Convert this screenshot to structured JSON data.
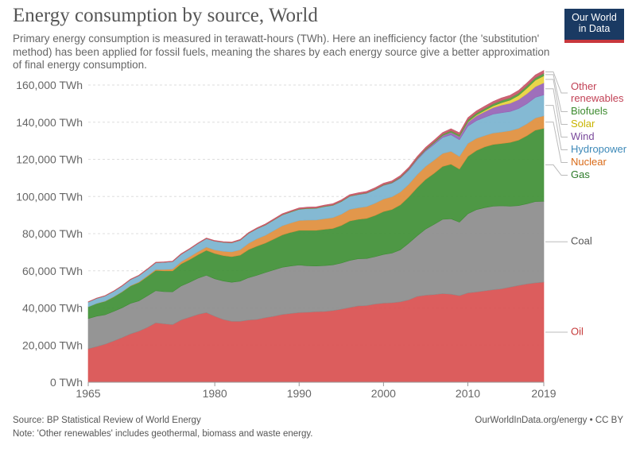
{
  "header": {
    "title": "Energy consumption by source, World",
    "subtitle": "Primary energy consumption is measured in terawatt-hours (TWh). Here an inefficiency factor (the 'substitution' method) has been applied for fossil fuels, meaning the shares by each energy source give a better approximation of final energy consumption."
  },
  "logo": {
    "line1": "Our World",
    "line2": "in Data",
    "bg": "#1a3a63",
    "accent": "#c8373d"
  },
  "footer": {
    "source": "Source: BP Statistical Review of World Energy",
    "note": "Note: 'Other renewables' includes geothermal, biomass and waste energy.",
    "credit": "OurWorldInData.org/energy • CC BY"
  },
  "chart_data": {
    "type": "area",
    "stacked": true,
    "x": [
      1965,
      1966,
      1967,
      1968,
      1969,
      1970,
      1971,
      1972,
      1973,
      1974,
      1975,
      1976,
      1977,
      1978,
      1979,
      1980,
      1981,
      1982,
      1983,
      1984,
      1985,
      1986,
      1987,
      1988,
      1989,
      1990,
      1991,
      1992,
      1993,
      1994,
      1995,
      1996,
      1997,
      1998,
      1999,
      2000,
      2001,
      2002,
      2003,
      2004,
      2005,
      2006,
      2007,
      2008,
      2009,
      2010,
      2011,
      2012,
      2013,
      2014,
      2015,
      2016,
      2017,
      2018,
      2019
    ],
    "x_ticks": [
      1965,
      1980,
      1990,
      2000,
      2010,
      2019
    ],
    "y_ticks": [
      0,
      20000,
      40000,
      60000,
      80000,
      100000,
      120000,
      140000,
      160000
    ],
    "y_tick_labels": [
      "0 TWh",
      "20,000 TWh",
      "40,000 TWh",
      "60,000 TWh",
      "80,000 TWh",
      "100,000 TWh",
      "120,000 TWh",
      "140,000 TWh",
      "160,000 TWh"
    ],
    "ylim": [
      0,
      160000
    ],
    "grid": true,
    "series": [
      {
        "name": "Oil",
        "color": "#d94f4f",
        "label_color": "#c63b3b",
        "values": [
          18000,
          19200,
          20500,
          22200,
          24000,
          26000,
          27500,
          29500,
          32000,
          31500,
          31000,
          33500,
          35000,
          36500,
          37500,
          35500,
          33800,
          32800,
          32800,
          33500,
          33800,
          34800,
          35500,
          36500,
          37000,
          37500,
          37700,
          38000,
          38100,
          38600,
          39300,
          40200,
          41100,
          41300,
          42100,
          42600,
          42800,
          43300,
          44300,
          46200,
          46900,
          47200,
          47700,
          47400,
          46600,
          48100,
          48600,
          49200,
          49800,
          50300,
          51200,
          52100,
          52900,
          53500,
          53900
        ]
      },
      {
        "name": "Coal",
        "color": "#8c8c8c",
        "label_color": "#555555",
        "values": [
          16300,
          16400,
          15800,
          15900,
          16100,
          16500,
          16300,
          17000,
          17300,
          17300,
          17700,
          18300,
          18800,
          19500,
          20100,
          20200,
          20700,
          21000,
          21600,
          22800,
          23800,
          24300,
          25000,
          25400,
          25600,
          25600,
          25000,
          24600,
          24700,
          24600,
          24900,
          25400,
          25400,
          25300,
          25500,
          26200,
          26700,
          28000,
          30600,
          32700,
          35600,
          37800,
          40000,
          40600,
          39600,
          42600,
          44300,
          44800,
          45000,
          44700,
          43600,
          43000,
          43200,
          43800,
          43500
        ]
      },
      {
        "name": "Gas",
        "color": "#3f8f35",
        "label_color": "#2c7a28",
        "values": [
          6300,
          6800,
          7300,
          7800,
          8500,
          9300,
          9900,
          10400,
          10900,
          11200,
          11300,
          11900,
          12200,
          12600,
          13400,
          13600,
          13700,
          13800,
          14000,
          15100,
          15700,
          15800,
          16600,
          17400,
          18100,
          18700,
          19100,
          19200,
          19500,
          19600,
          20200,
          21200,
          21200,
          21600,
          22200,
          23100,
          23500,
          24200,
          24900,
          25900,
          26700,
          27500,
          28500,
          29400,
          28600,
          30900,
          31800,
          32700,
          33200,
          33500,
          34300,
          35200,
          36600,
          38400,
          39300
        ]
      },
      {
        "name": "Nuclear",
        "color": "#e08e3c",
        "label_color": "#d96a17",
        "values": [
          60,
          90,
          110,
          140,
          170,
          230,
          300,
          420,
          550,
          700,
          950,
          1150,
          1450,
          1650,
          1750,
          1950,
          2300,
          2550,
          2900,
          3400,
          3900,
          4200,
          4550,
          4950,
          5050,
          5250,
          5500,
          5550,
          5750,
          5850,
          6050,
          6300,
          6250,
          6400,
          6600,
          6700,
          6850,
          6900,
          6800,
          7050,
          7050,
          7100,
          6950,
          6900,
          6800,
          6950,
          6550,
          6100,
          6150,
          6200,
          6300,
          6350,
          6450,
          6550,
          6700
        ]
      },
      {
        "name": "Hydropower",
        "color": "#7ab3cf",
        "label_color": "#3d89b8",
        "values": [
          2500,
          2650,
          2750,
          2850,
          3000,
          3200,
          3350,
          3450,
          3600,
          3850,
          4000,
          4000,
          4150,
          4400,
          4600,
          4700,
          4800,
          4900,
          5100,
          5300,
          5400,
          5500,
          5650,
          5800,
          5900,
          6050,
          6200,
          6250,
          6500,
          6600,
          6800,
          6950,
          7050,
          7100,
          7200,
          7350,
          7300,
          7450,
          7550,
          7950,
          8200,
          8450,
          8600,
          8900,
          8950,
          9350,
          9550,
          9850,
          10200,
          10400,
          10350,
          10700,
          10800,
          11100,
          11300
        ]
      },
      {
        "name": "Wind",
        "color": "#9663b5",
        "label_color": "#7a4a9c",
        "values": [
          0,
          0,
          0,
          0,
          0,
          0,
          0,
          0,
          0,
          0,
          0,
          0,
          0,
          0,
          0,
          0,
          0,
          0,
          0,
          0,
          0,
          0,
          0,
          0,
          0,
          10,
          15,
          20,
          25,
          35,
          45,
          55,
          75,
          100,
          130,
          180,
          240,
          320,
          400,
          520,
          640,
          810,
          1030,
          1330,
          1680,
          2100,
          2560,
          3010,
          3450,
          4120,
          4400,
          4800,
          5400,
          5800,
          6500
        ]
      },
      {
        "name": "Solar",
        "color": "#e8d23c",
        "label_color": "#c8b400",
        "values": [
          0,
          0,
          0,
          0,
          0,
          0,
          0,
          0,
          0,
          0,
          0,
          0,
          0,
          0,
          0,
          0,
          0,
          0,
          0,
          0,
          0,
          0,
          0,
          0,
          0,
          0,
          0,
          0,
          0,
          0,
          0,
          0,
          0,
          0,
          0,
          0,
          0,
          0,
          0,
          10,
          20,
          30,
          50,
          80,
          140,
          250,
          480,
          700,
          1000,
          1300,
          1720,
          2260,
          2980,
          3450,
          3700
        ]
      },
      {
        "name": "Biofuels",
        "color": "#4f9a3e",
        "label_color": "#3c8a2e",
        "values": [
          0,
          0,
          0,
          0,
          0,
          0,
          0,
          0,
          0,
          0,
          0,
          0,
          0,
          0,
          0,
          0,
          70,
          80,
          90,
          100,
          110,
          120,
          130,
          140,
          150,
          155,
          155,
          160,
          165,
          175,
          190,
          190,
          200,
          210,
          220,
          230,
          245,
          270,
          320,
          360,
          420,
          520,
          630,
          780,
          860,
          1000,
          1030,
          1040,
          1100,
          1190,
          1230,
          1240,
          1280,
          1330,
          1390
        ]
      },
      {
        "name": "Other renewables",
        "color": "#c75667",
        "label_color": "#c24256",
        "values": [
          200,
          210,
          220,
          230,
          240,
          250,
          260,
          270,
          280,
          290,
          300,
          310,
          320,
          330,
          340,
          350,
          360,
          380,
          400,
          420,
          450,
          480,
          520,
          550,
          580,
          600,
          620,
          640,
          660,
          680,
          700,
          720,
          740,
          760,
          780,
          800,
          820,
          840,
          870,
          900,
          940,
          980,
          1020,
          1060,
          1100,
          1150,
          1200,
          1250,
          1300,
          1350,
          1400,
          1450,
          1500,
          1550,
          1580
        ]
      }
    ]
  }
}
